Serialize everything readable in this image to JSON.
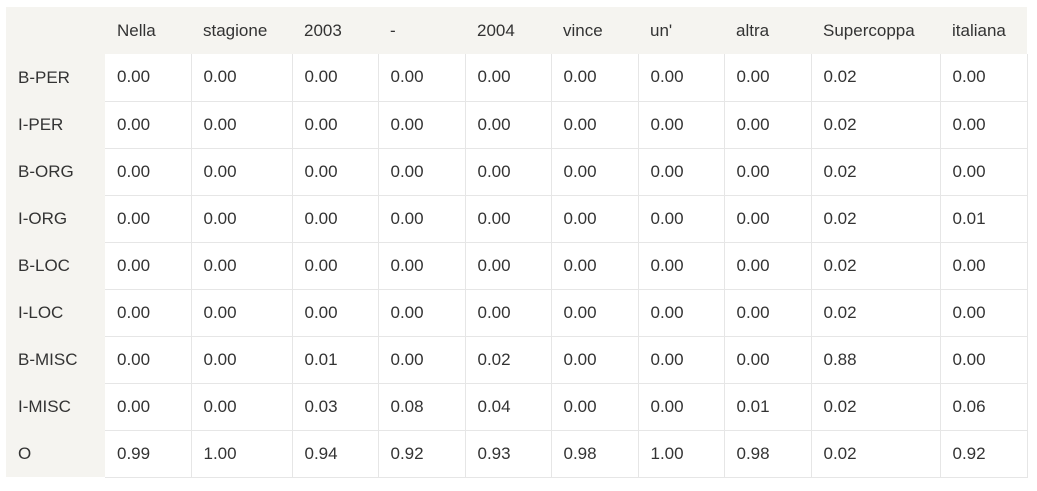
{
  "chart_data": {
    "type": "table",
    "columns": [
      "Nella",
      "stagione",
      "2003",
      "-",
      "2004",
      "vince",
      "un'",
      "altra",
      "Supercoppa",
      "italiana"
    ],
    "rows": [
      {
        "label": "B-PER",
        "values": [
          "0.00",
          "0.00",
          "0.00",
          "0.00",
          "0.00",
          "0.00",
          "0.00",
          "0.00",
          "0.02",
          "0.00"
        ]
      },
      {
        "label": "I-PER",
        "values": [
          "0.00",
          "0.00",
          "0.00",
          "0.00",
          "0.00",
          "0.00",
          "0.00",
          "0.00",
          "0.02",
          "0.00"
        ]
      },
      {
        "label": "B-ORG",
        "values": [
          "0.00",
          "0.00",
          "0.00",
          "0.00",
          "0.00",
          "0.00",
          "0.00",
          "0.00",
          "0.02",
          "0.00"
        ]
      },
      {
        "label": "I-ORG",
        "values": [
          "0.00",
          "0.00",
          "0.00",
          "0.00",
          "0.00",
          "0.00",
          "0.00",
          "0.00",
          "0.02",
          "0.01"
        ]
      },
      {
        "label": "B-LOC",
        "values": [
          "0.00",
          "0.00",
          "0.00",
          "0.00",
          "0.00",
          "0.00",
          "0.00",
          "0.00",
          "0.02",
          "0.00"
        ]
      },
      {
        "label": "I-LOC",
        "values": [
          "0.00",
          "0.00",
          "0.00",
          "0.00",
          "0.00",
          "0.00",
          "0.00",
          "0.00",
          "0.02",
          "0.00"
        ]
      },
      {
        "label": "B-MISC",
        "values": [
          "0.00",
          "0.00",
          "0.01",
          "0.00",
          "0.02",
          "0.00",
          "0.00",
          "0.00",
          "0.88",
          "0.00"
        ]
      },
      {
        "label": "I-MISC",
        "values": [
          "0.00",
          "0.00",
          "0.03",
          "0.08",
          "0.04",
          "0.00",
          "0.00",
          "0.01",
          "0.02",
          "0.06"
        ]
      },
      {
        "label": "O",
        "values": [
          "0.99",
          "1.00",
          "0.94",
          "0.92",
          "0.93",
          "0.98",
          "1.00",
          "0.98",
          "0.02",
          "0.92"
        ]
      }
    ]
  }
}
